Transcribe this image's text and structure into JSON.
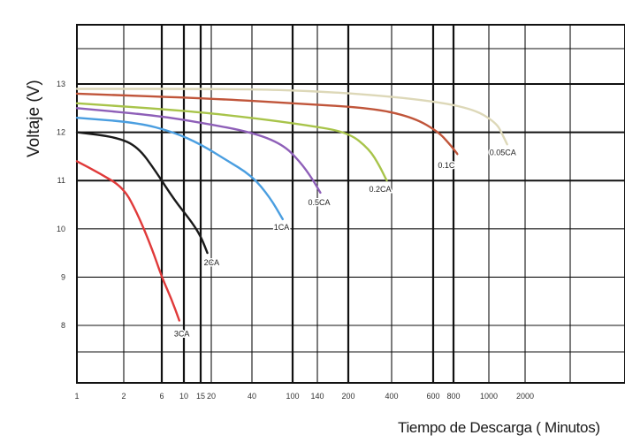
{
  "chart_data": {
    "type": "line",
    "title": "",
    "xlabel": "Tiempo de Descarga ( Minutos)",
    "ylabel": "Voltaje  (V)",
    "x_scale": "log",
    "x_ticks": [
      1,
      2,
      6,
      10,
      15,
      20,
      40,
      100,
      140,
      200,
      400,
      600,
      800,
      1000,
      2000
    ],
    "x_tick_labels": [
      "1",
      "2",
      "6",
      "10",
      "15",
      "20",
      "40",
      "100",
      "140",
      "200",
      "400",
      "600",
      "800",
      "1000",
      "2000"
    ],
    "y_ticks": [
      8,
      9,
      10,
      11,
      12,
      13
    ],
    "y_tick_labels": [
      "8",
      "9",
      "10",
      "11",
      "12",
      "13"
    ],
    "grid": true,
    "series": [
      {
        "name": "3CA",
        "color": "#e03a3a",
        "x": [
          1,
          1.4,
          2,
          3,
          4.5,
          6,
          7.5,
          9
        ],
        "y": [
          11.4,
          11.15,
          10.85,
          10.3,
          9.6,
          9.0,
          8.55,
          8.1
        ]
      },
      {
        "name": "2CA",
        "color": "#1a1a1a",
        "x": [
          1,
          1.8,
          3,
          5,
          8,
          12,
          15,
          18
        ],
        "y": [
          12.0,
          11.9,
          11.7,
          11.2,
          10.6,
          10.15,
          9.85,
          9.5
        ]
      },
      {
        "name": "1CA",
        "color": "#4a9ee0",
        "x": [
          1,
          3,
          8,
          15,
          25,
          40,
          60,
          80
        ],
        "y": [
          12.3,
          12.2,
          12.0,
          11.75,
          11.45,
          11.1,
          10.65,
          10.2
        ]
      },
      {
        "name": "0.5CA",
        "color": "#8e5fb8",
        "x": [
          1,
          5,
          15,
          40,
          80,
          110,
          130,
          145
        ],
        "y": [
          12.5,
          12.35,
          12.2,
          12.0,
          11.75,
          11.4,
          11.05,
          10.75
        ]
      },
      {
        "name": "0.2CA",
        "color": "#a8c44a",
        "x": [
          1,
          10,
          40,
          120,
          200,
          280,
          330,
          370
        ],
        "y": [
          12.6,
          12.45,
          12.3,
          12.15,
          12.0,
          11.65,
          11.3,
          11.0
        ]
      },
      {
        "name": "0.1C",
        "color": "#c0553a",
        "x": [
          1,
          20,
          100,
          300,
          500,
          650,
          760,
          820
        ],
        "y": [
          12.8,
          12.7,
          12.6,
          12.5,
          12.3,
          12.0,
          11.75,
          11.55
        ]
      },
      {
        "name": "0.05CA",
        "color": "#ddd8b8",
        "x": [
          1,
          30,
          150,
          500,
          900,
          1150,
          1300,
          1420
        ],
        "y": [
          12.9,
          12.9,
          12.85,
          12.7,
          12.5,
          12.2,
          11.95,
          11.75
        ]
      }
    ]
  }
}
